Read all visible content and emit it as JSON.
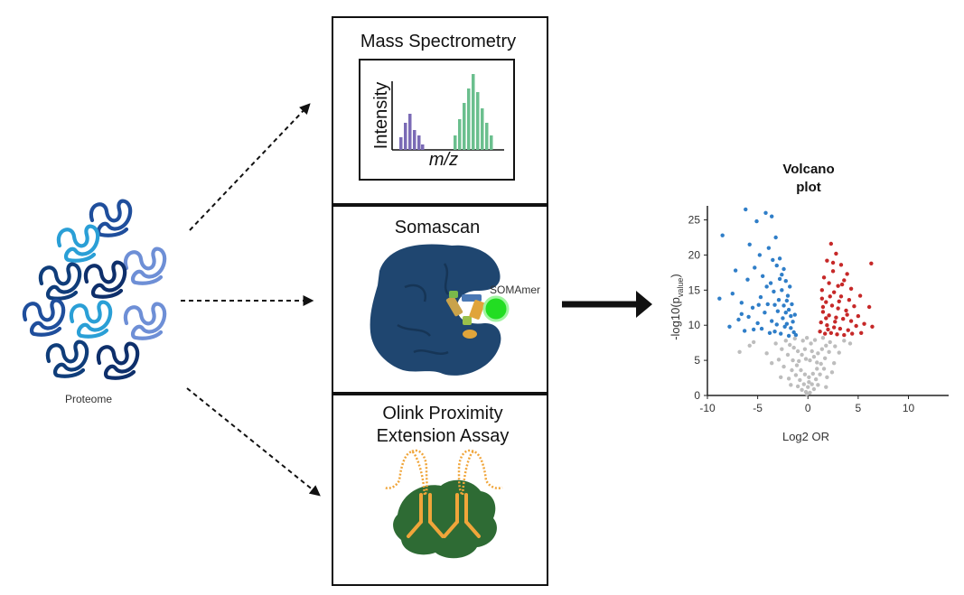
{
  "proteome": {
    "label": "Proteome"
  },
  "panels": {
    "mass_spec": {
      "title": "Mass Spectrometry",
      "ylabel": "Intensity",
      "xlabel": "m/z"
    },
    "somascan": {
      "title": "Somascan",
      "somamer_label": "SOMAmer"
    },
    "olink": {
      "title_line1": "Olink Proximity",
      "title_line2": "Extension Assay"
    }
  },
  "colors": {
    "protein_blues": [
      "#1f4e9c",
      "#6e8fd6",
      "#0e2f6b",
      "#2a9fd6",
      "#0f3d7a"
    ],
    "ms_peak_left": "#7b6bb6",
    "ms_peak_right": "#6bbf8e",
    "somascan_protein": "#1f4670",
    "somamer": "#22dd22",
    "olink_protein": "#2e6b34",
    "olink_antibody": "#f0a53a",
    "volcano_down": "#2f7ec8",
    "volcano_up": "#c62828",
    "volcano_ns": "#bdbdbd"
  },
  "chart_data": {
    "type": "scatter",
    "title_line1": "Volcano",
    "title_line2": "plot",
    "xlabel": "Log2 OR",
    "ylabel_main": "-log10(p",
    "ylabel_sub": "value",
    "ylabel_end": ")",
    "xlim": [
      -10,
      14
    ],
    "ylim": [
      0,
      27
    ],
    "xticks": [
      -10,
      -5,
      0,
      5,
      10
    ],
    "yticks": [
      0,
      5,
      10,
      15,
      20,
      25
    ],
    "series": [
      {
        "group": "down",
        "points": [
          [
            -8.5,
            22.8
          ],
          [
            -6.2,
            26.5
          ],
          [
            -5.1,
            24.8
          ],
          [
            -4.2,
            26
          ],
          [
            -3.6,
            25.5
          ],
          [
            -5.8,
            21.5
          ],
          [
            -4.8,
            20
          ],
          [
            -3.9,
            21
          ],
          [
            -3.2,
            22.5
          ],
          [
            -2.8,
            19.5
          ],
          [
            -7.2,
            17.8
          ],
          [
            -6,
            16.5
          ],
          [
            -5.3,
            18.2
          ],
          [
            -4.5,
            17
          ],
          [
            -3.7,
            16
          ],
          [
            -3.1,
            18.5
          ],
          [
            -2.6,
            17.2
          ],
          [
            -2.2,
            16.3
          ],
          [
            -1.8,
            15.5
          ],
          [
            -8.8,
            13.8
          ],
          [
            -7.5,
            14.5
          ],
          [
            -6.6,
            13.2
          ],
          [
            -5.5,
            12.5
          ],
          [
            -4.7,
            14
          ],
          [
            -4,
            13
          ],
          [
            -3.4,
            14.8
          ],
          [
            -2.9,
            13.6
          ],
          [
            -2.4,
            12.8
          ],
          [
            -2,
            14.2
          ],
          [
            -1.6,
            13
          ],
          [
            -1.3,
            11.5
          ],
          [
            -6.9,
            10.8
          ],
          [
            -5.9,
            11.2
          ],
          [
            -5,
            10.3
          ],
          [
            -4.3,
            11.8
          ],
          [
            -3.6,
            10.6
          ],
          [
            -3,
            12
          ],
          [
            -2.5,
            11
          ],
          [
            -2.1,
            10.2
          ],
          [
            -1.7,
            9.6
          ],
          [
            -1.4,
            9
          ],
          [
            -7.8,
            9.8
          ],
          [
            -6.3,
            9.2
          ],
          [
            -4.6,
            9.5
          ],
          [
            -3.3,
            9.1
          ],
          [
            -2.7,
            8.8
          ],
          [
            -2.3,
            9.8
          ],
          [
            -1.9,
            8.5
          ],
          [
            -1.2,
            8.6
          ],
          [
            -3.8,
            8.9
          ],
          [
            -5.4,
            9.4
          ],
          [
            -2.6,
            15
          ],
          [
            -3.5,
            19.3
          ],
          [
            -4.1,
            15.5
          ],
          [
            -2.2,
            11.8
          ],
          [
            -1.5,
            10.5
          ],
          [
            -1.9,
            12.2
          ],
          [
            -3.1,
            10.1
          ],
          [
            -2.8,
            16.6
          ],
          [
            -4.9,
            12.9
          ],
          [
            -6.6,
            11.6
          ],
          [
            -2.4,
            18
          ],
          [
            -1.7,
            11.3
          ],
          [
            -3.3,
            12.9
          ],
          [
            -2.1,
            13.5
          ]
        ]
      },
      {
        "group": "up",
        "points": [
          [
            6.3,
            18.8
          ],
          [
            5.2,
            14.2
          ],
          [
            6.1,
            12.6
          ],
          [
            6.4,
            9.8
          ],
          [
            2.3,
            21.6
          ],
          [
            2.8,
            20.2
          ],
          [
            1.9,
            19.2
          ],
          [
            3.3,
            18.6
          ],
          [
            2.5,
            17.7
          ],
          [
            3.9,
            17.3
          ],
          [
            1.6,
            16.8
          ],
          [
            2.1,
            16
          ],
          [
            3,
            15.6
          ],
          [
            3.6,
            16.4
          ],
          [
            4.3,
            15.2
          ],
          [
            1.4,
            15
          ],
          [
            2.6,
            14.7
          ],
          [
            3.3,
            14.1
          ],
          [
            4.1,
            13.6
          ],
          [
            1.8,
            13.3
          ],
          [
            2.4,
            12.8
          ],
          [
            3,
            12.4
          ],
          [
            3.8,
            12.1
          ],
          [
            4.6,
            12.7
          ],
          [
            1.5,
            11.9
          ],
          [
            2.1,
            11.4
          ],
          [
            2.8,
            11.1
          ],
          [
            3.5,
            10.9
          ],
          [
            4.3,
            10.6
          ],
          [
            5,
            11.3
          ],
          [
            1.3,
            10.4
          ],
          [
            1.9,
            10
          ],
          [
            2.6,
            9.7
          ],
          [
            3.2,
            9.5
          ],
          [
            4,
            9.3
          ],
          [
            4.8,
            9.9
          ],
          [
            5.6,
            10.2
          ],
          [
            1.2,
            9.1
          ],
          [
            1.7,
            8.8
          ],
          [
            2.3,
            8.9
          ],
          [
            2.9,
            8.7
          ],
          [
            3.6,
            8.6
          ],
          [
            5.3,
            8.9
          ],
          [
            1.5,
            12.6
          ],
          [
            2.2,
            14.1
          ],
          [
            3.1,
            13.4
          ],
          [
            1.4,
            13.8
          ],
          [
            2.7,
            10.5
          ],
          [
            3.9,
            11.5
          ],
          [
            2,
            9.4
          ],
          [
            4.4,
            8.8
          ],
          [
            1.8,
            11
          ],
          [
            3.4,
            15.8
          ],
          [
            2.5,
            18.9
          ]
        ]
      },
      {
        "group": "ns",
        "points": [
          [
            -2.2,
            7.8
          ],
          [
            -1.8,
            7.2
          ],
          [
            -1.4,
            6.8
          ],
          [
            -1,
            6.3
          ],
          [
            -0.6,
            5.8
          ],
          [
            -0.2,
            5.2
          ],
          [
            0.2,
            5
          ],
          [
            0.6,
            5.5
          ],
          [
            1,
            6
          ],
          [
            1.4,
            6.6
          ],
          [
            1.8,
            7.1
          ],
          [
            2.2,
            7.6
          ],
          [
            -2.6,
            6.6
          ],
          [
            -2,
            5.8
          ],
          [
            -1.5,
            5
          ],
          [
            -1.1,
            4.3
          ],
          [
            -0.7,
            3.6
          ],
          [
            -0.3,
            3
          ],
          [
            0.1,
            2.6
          ],
          [
            0.5,
            3.1
          ],
          [
            0.9,
            3.8
          ],
          [
            1.3,
            4.5
          ],
          [
            1.7,
            5.3
          ],
          [
            2.1,
            6.2
          ],
          [
            -1.6,
            3.6
          ],
          [
            -1.2,
            2.9
          ],
          [
            -0.8,
            2.2
          ],
          [
            -0.4,
            1.6
          ],
          [
            0,
            1.2
          ],
          [
            0.4,
            1.6
          ],
          [
            0.8,
            2.3
          ],
          [
            1.2,
            3
          ],
          [
            1.6,
            3.8
          ],
          [
            -1,
            1.3
          ],
          [
            -0.6,
            0.8
          ],
          [
            -0.2,
            0.5
          ],
          [
            0.2,
            0.4
          ],
          [
            0.6,
            0.9
          ],
          [
            1,
            1.5
          ],
          [
            -3.2,
            7.4
          ],
          [
            -2.9,
            5.1
          ],
          [
            2.7,
            7
          ],
          [
            3.1,
            6.1
          ],
          [
            -5.4,
            7.6
          ],
          [
            -4.1,
            6
          ],
          [
            -3.6,
            4.6
          ],
          [
            -6.8,
            6.2
          ],
          [
            3.6,
            7.8
          ],
          [
            2.6,
            4.6
          ],
          [
            -2.4,
            4.1
          ],
          [
            -1.9,
            2.4
          ],
          [
            1.9,
            2.6
          ],
          [
            0.3,
            7.4
          ],
          [
            -0.5,
            7.8
          ],
          [
            -0.1,
            8.2
          ],
          [
            0.7,
            7.9
          ],
          [
            -1.3,
            8.1
          ],
          [
            1.5,
            8.2
          ],
          [
            -0.9,
            4.9
          ],
          [
            0.9,
            4.7
          ],
          [
            -0.3,
            6.6
          ],
          [
            0.4,
            6.3
          ],
          [
            -5.8,
            7.1
          ],
          [
            4.2,
            7.4
          ],
          [
            -2.7,
            2.6
          ],
          [
            2.4,
            3.3
          ],
          [
            -0.1,
            0.2
          ],
          [
            0.1,
            1.9
          ],
          [
            -1.7,
            1.5
          ],
          [
            1.8,
            1.2
          ]
        ]
      }
    ]
  }
}
